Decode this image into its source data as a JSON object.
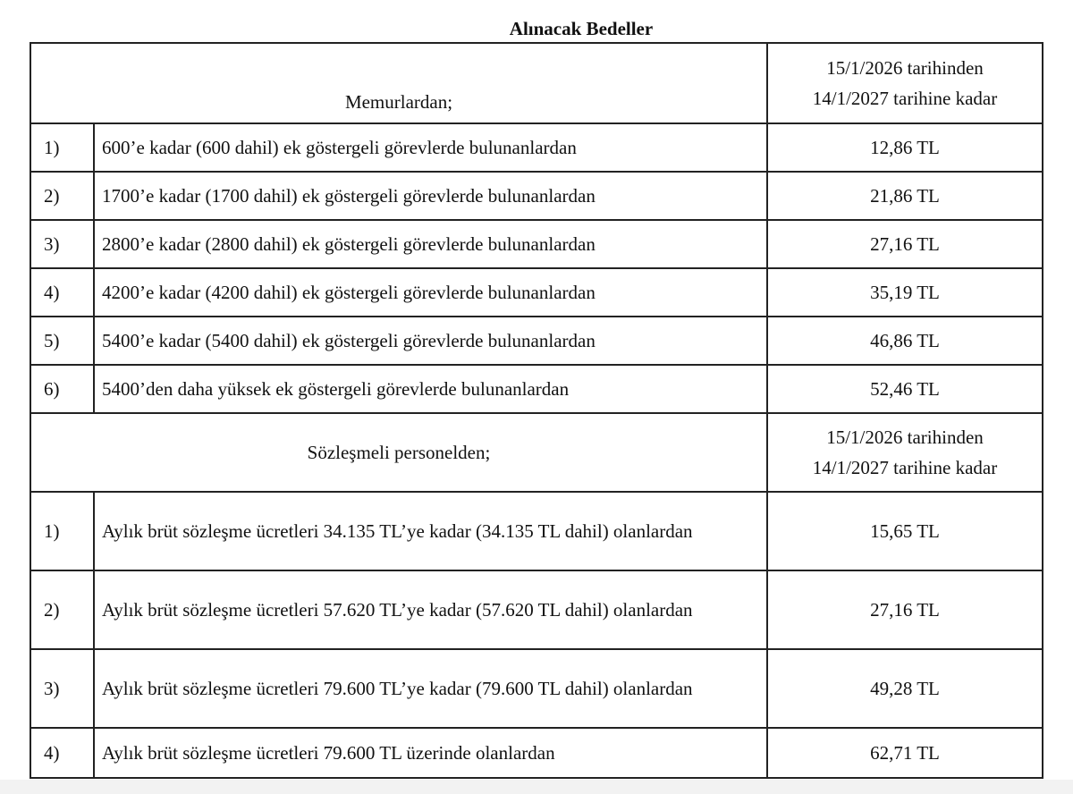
{
  "title": "Alınacak Bedeller",
  "memur": {
    "header": "Memurlardan;",
    "period_line1": "15/1/2026 tarihinden",
    "period_line2": "14/1/2027 tarihine kadar",
    "rows": [
      {
        "no": "1)",
        "desc": "600’e kadar (600 dahil) ek göstergeli görevlerde bulunanlardan",
        "value": "12,86 TL"
      },
      {
        "no": "2)",
        "desc": "1700’e kadar (1700 dahil) ek göstergeli görevlerde bulunanlardan",
        "value": "21,86 TL"
      },
      {
        "no": "3)",
        "desc": "2800’e kadar (2800 dahil) ek göstergeli görevlerde bulunanlardan",
        "value": "27,16 TL"
      },
      {
        "no": "4)",
        "desc": "4200’e kadar (4200 dahil) ek göstergeli görevlerde bulunanlardan",
        "value": "35,19 TL"
      },
      {
        "no": "5)",
        "desc": "5400’e kadar (5400 dahil) ek göstergeli görevlerde bulunanlardan",
        "value": "46,86 TL"
      },
      {
        "no": "6)",
        "desc": "5400’den daha yüksek ek göstergeli görevlerde bulunanlardan",
        "value": "52,46 TL"
      }
    ]
  },
  "sozlesmeli": {
    "header": "Sözleşmeli personelden;",
    "period_line1": "15/1/2026 tarihinden",
    "period_line2": "14/1/2027 tarihine kadar",
    "rows": [
      {
        "no": "1)",
        "desc": "Aylık brüt sözleşme ücretleri 34.135 TL’ye kadar (34.135 TL dahil) olanlardan",
        "value": "15,65 TL"
      },
      {
        "no": "2)",
        "desc": "Aylık brüt sözleşme ücretleri 57.620 TL’ye kadar (57.620 TL dahil) olanlardan",
        "value": "27,16 TL"
      },
      {
        "no": "3)",
        "desc": "Aylık brüt sözleşme ücretleri 79.600 TL’ye kadar (79.600 TL dahil) olanlardan",
        "value": "49,28 TL"
      },
      {
        "no": "4)",
        "desc": "Aylık brüt sözleşme ücretleri 79.600 TL üzerinde olanlardan",
        "value": "62,71 TL"
      }
    ]
  }
}
